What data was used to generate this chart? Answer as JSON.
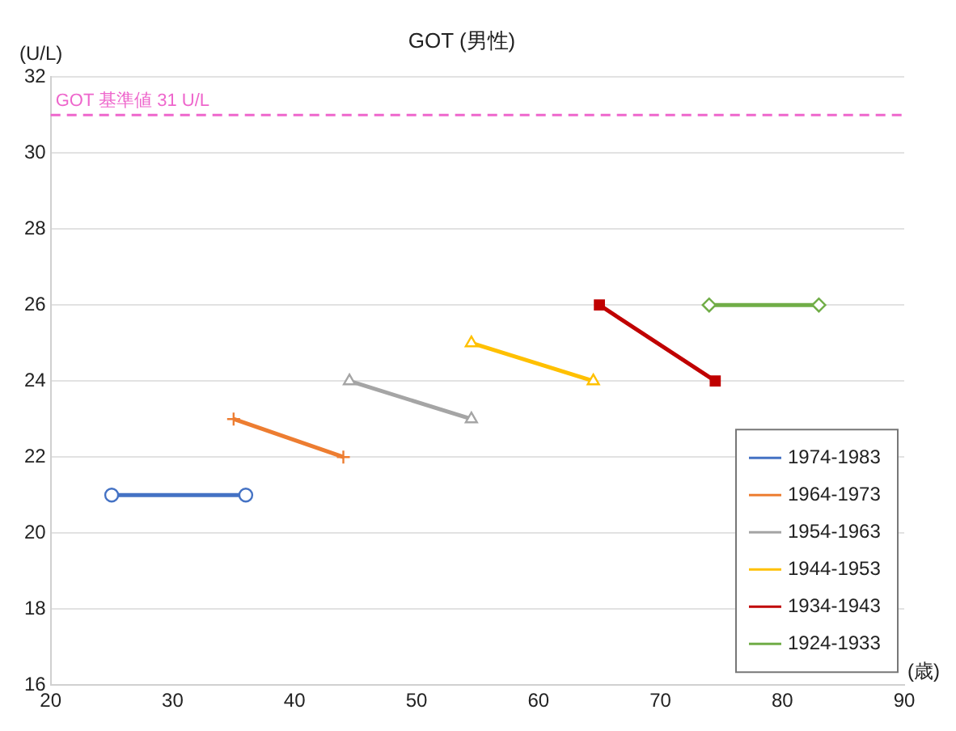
{
  "chart_data": {
    "type": "line",
    "title": "GOT (男性)",
    "xlabel": "(歳)",
    "ylabel": "(U/L)",
    "xlim": [
      20,
      90
    ],
    "xticks": [
      20,
      30,
      40,
      50,
      60,
      70,
      80,
      90
    ],
    "ylim": [
      16,
      32
    ],
    "yticks": [
      16,
      18,
      20,
      22,
      24,
      26,
      28,
      30,
      32
    ],
    "grid": "y",
    "legend": "bottom right",
    "line_style": "solid",
    "ref_lines": [
      {
        "axis": "y",
        "value": 31,
        "label": "GOT 基準値 31 U/L",
        "color": "#ee66cc",
        "line_style": "dashed"
      }
    ],
    "series": [
      {
        "name": "1974-1983",
        "color": "#4472c4",
        "marker": "circle",
        "x": [
          25,
          36
        ],
        "values": [
          21,
          21
        ]
      },
      {
        "name": "1964-1973",
        "color": "#ed7d31",
        "marker": "cross",
        "x": [
          35,
          44
        ],
        "values": [
          23,
          22
        ]
      },
      {
        "name": "1954-1963",
        "color": "#a5a5a5",
        "marker": "triangle",
        "x": [
          44.5,
          54.5
        ],
        "values": [
          24,
          23
        ]
      },
      {
        "name": "1944-1953",
        "color": "#ffc000",
        "marker": "triangle",
        "x": [
          54.5,
          64.5
        ],
        "values": [
          25,
          24
        ]
      },
      {
        "name": "1934-1943",
        "color": "#c00000",
        "marker": "square",
        "x": [
          65,
          74.5
        ],
        "values": [
          26,
          24
        ]
      },
      {
        "name": "1924-1933",
        "color": "#70ad47",
        "marker": "diamond",
        "x": [
          74,
          83
        ],
        "values": [
          26,
          26
        ]
      }
    ]
  }
}
